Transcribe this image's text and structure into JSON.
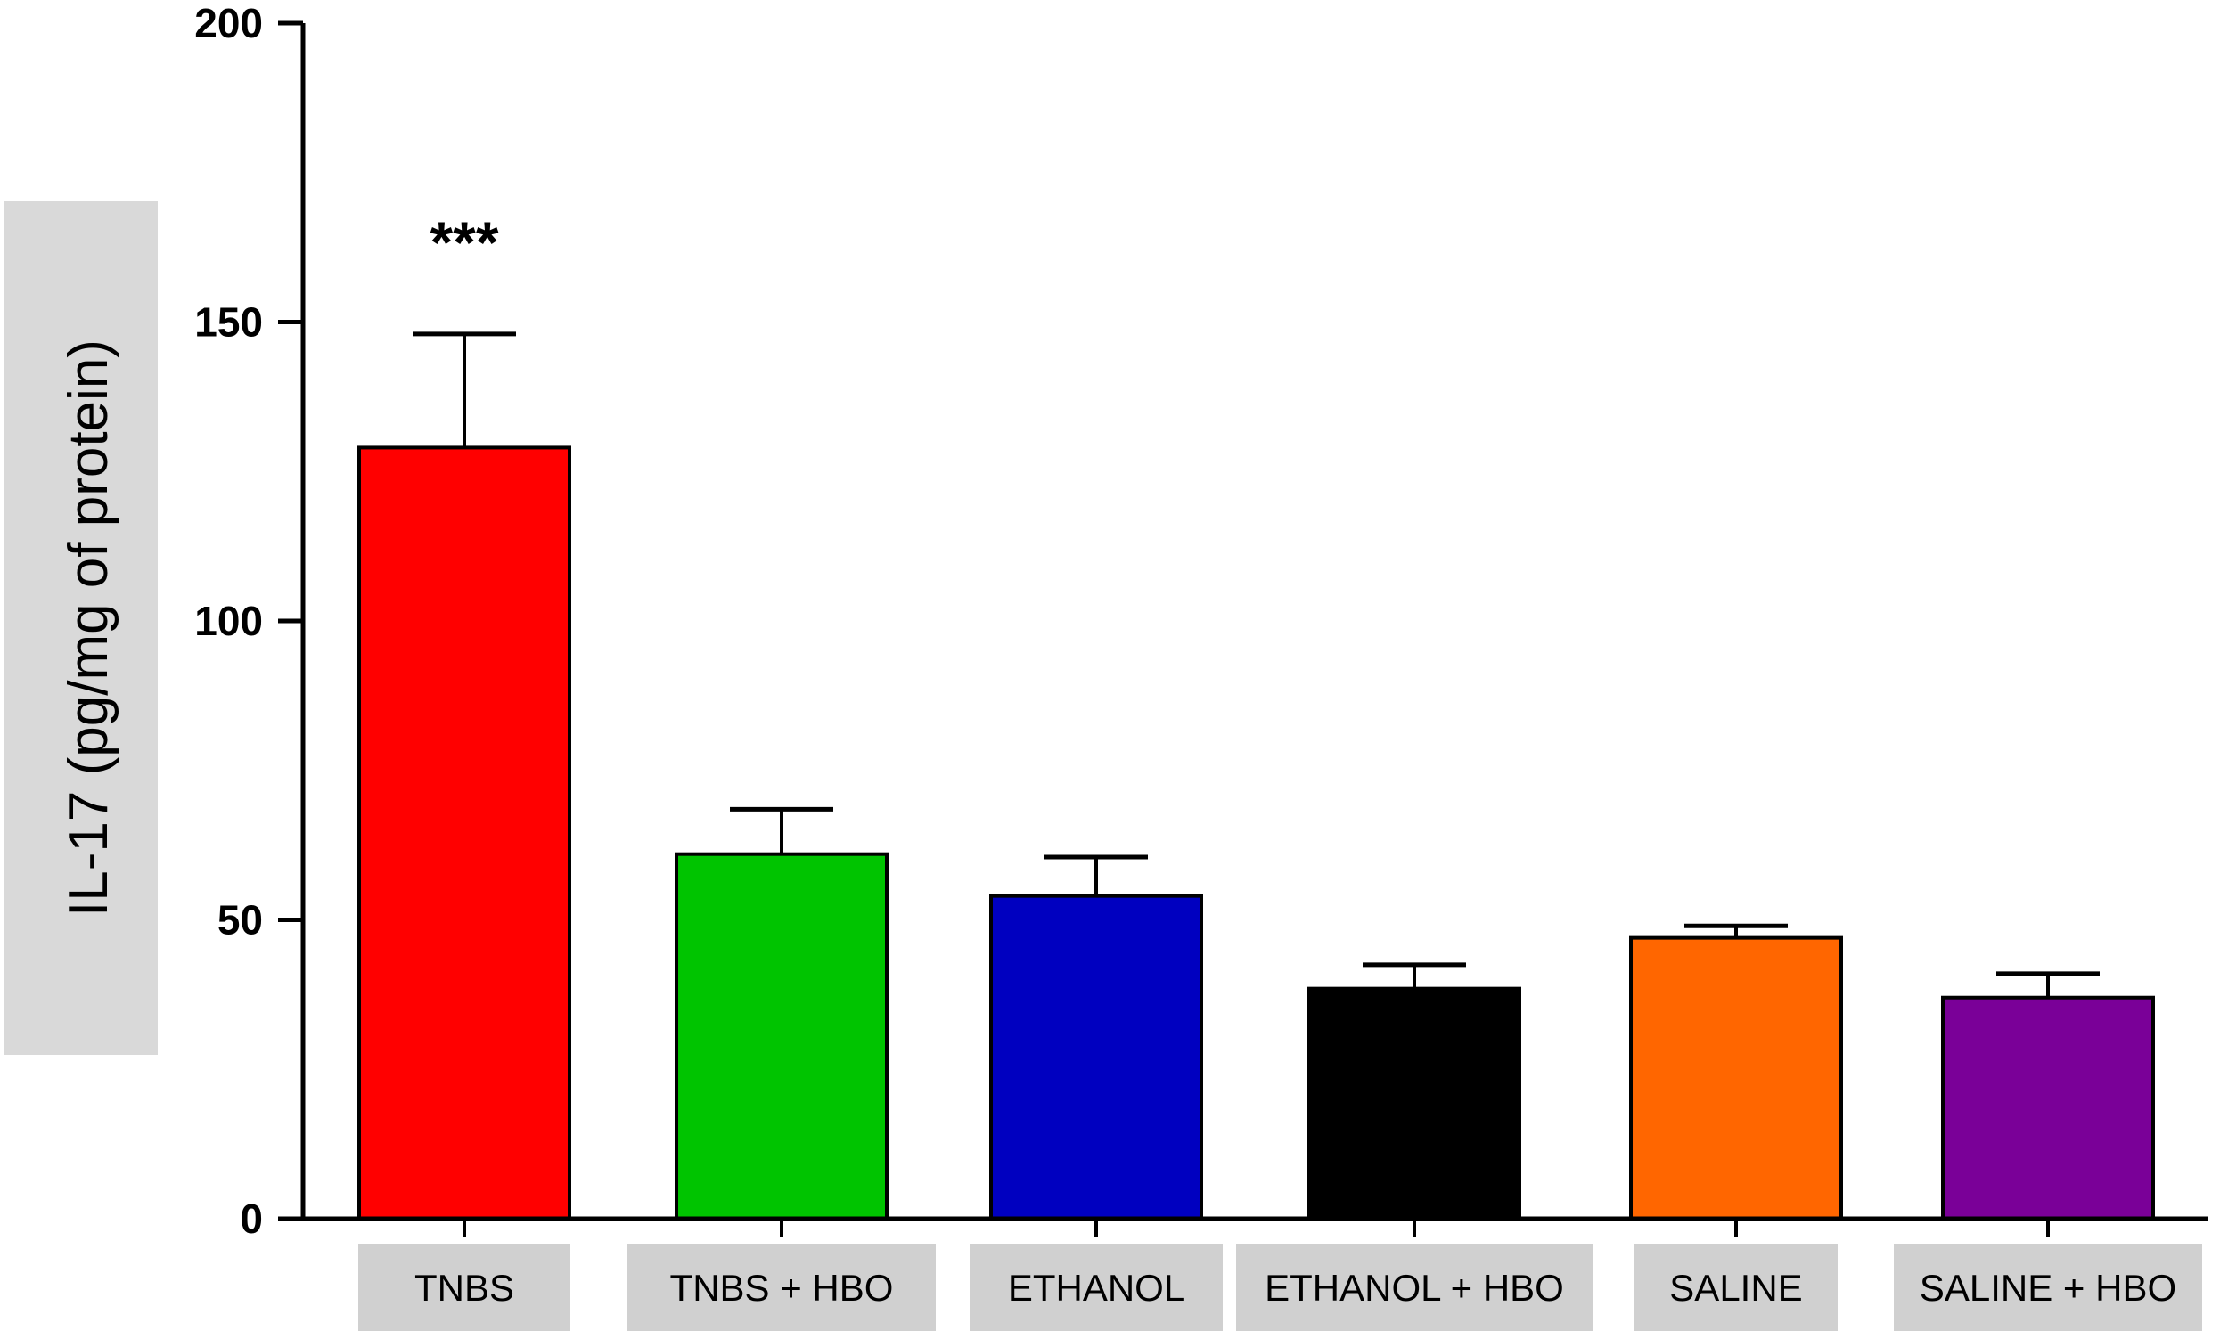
{
  "chart_data": {
    "type": "bar",
    "title": "",
    "xlabel": "",
    "ylabel": "IL-17 (pg/mg of protein)",
    "ylim": [
      0,
      200
    ],
    "yticks": [
      "0",
      "50",
      "100",
      "150",
      "200"
    ],
    "categories": [
      "TNBS",
      "TNBS + HBO",
      "ETHANOL",
      "ETHANOL  + HBO",
      "SALINE",
      "SALINE + HBO"
    ],
    "values": [
      129,
      61,
      54,
      38.5,
      47,
      37
    ],
    "error_upper": [
      148,
      68.5,
      60.5,
      42.5,
      49,
      41
    ],
    "colors": [
      "#ff0000",
      "#00c400",
      "#0000c0",
      "#000000",
      "#ff6600",
      "#7a0098"
    ],
    "annotations": [
      {
        "category": "TNBS",
        "text": "***"
      }
    ],
    "grid": false,
    "legend": "none"
  }
}
